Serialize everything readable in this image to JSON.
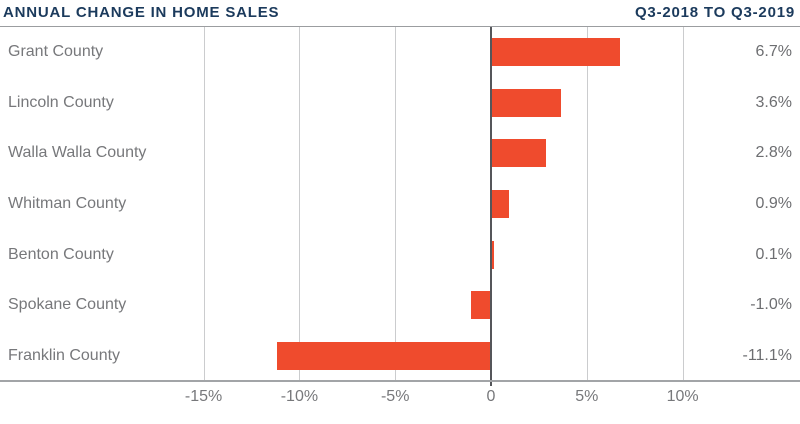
{
  "header": {
    "title": "ANNUAL CHANGE IN HOME SALES",
    "period": "Q3-2018 TO Q3-2019"
  },
  "colors": {
    "bar": "#EF4B2D",
    "title_navy": "#1B3A5C",
    "label_gray": "#77787B",
    "gridline": "#CBCCCE",
    "zero_line": "#55565A",
    "axis_line": "#A2A4A7"
  },
  "chart_data": {
    "type": "bar",
    "orientation": "horizontal",
    "title": "ANNUAL CHANGE IN HOME SALES",
    "subtitle": "Q3-2018 TO Q3-2019",
    "categories": [
      "Grant County",
      "Lincoln County",
      "Walla Walla County",
      "Whitman County",
      "Benton County",
      "Spokane County",
      "Franklin County"
    ],
    "values": [
      6.7,
      3.6,
      2.8,
      0.9,
      0.1,
      -1.0,
      -11.1
    ],
    "value_labels": [
      "6.7%",
      "3.6%",
      "2.8%",
      "0.9%",
      "0.1%",
      "-1.0%",
      "-11.1%"
    ],
    "unit": "%",
    "xlabel": "",
    "ylabel": "",
    "xlim": [
      -25.6,
      16.1
    ],
    "grid": true,
    "legend": "none",
    "x_ticks": [
      {
        "value": -15,
        "label": "-15%"
      },
      {
        "value": -10,
        "label": "-10%"
      },
      {
        "value": -5,
        "label": "-5%"
      },
      {
        "value": 0,
        "label": "0"
      },
      {
        "value": 5,
        "label": "5%"
      },
      {
        "value": 10,
        "label": "10%"
      }
    ]
  }
}
